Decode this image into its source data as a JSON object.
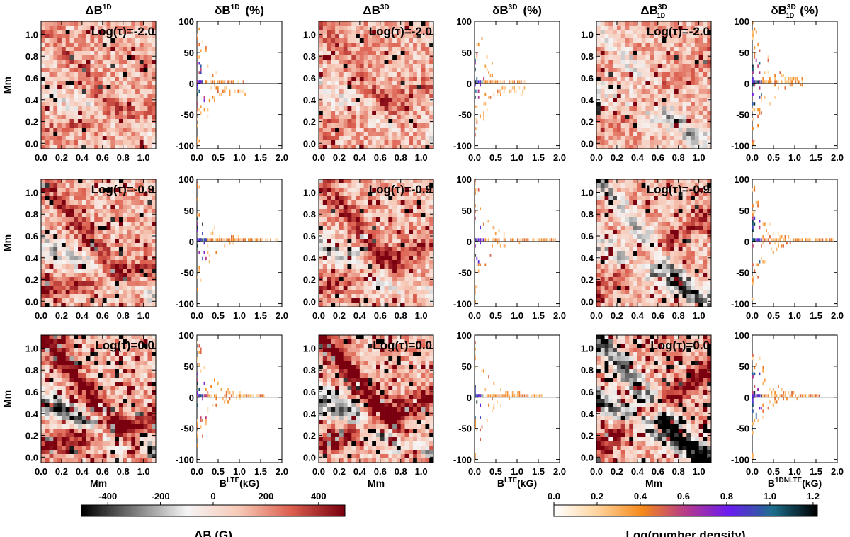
{
  "chart_data": {
    "type": "heatmap",
    "columns": [
      {
        "map_title": "ΔB",
        "map_sup": "1D",
        "map_sub": "",
        "hist_title": "δB",
        "hist_sup": "1D",
        "hist_sub": "",
        "hist_unit": "(%)",
        "hist_xlabel_main": "B",
        "hist_xlabel_sup": "LTE",
        "hist_xlabel_unit": "(kG)"
      },
      {
        "map_title": "ΔB",
        "map_sup": "3D",
        "map_sub": "",
        "hist_title": "δB",
        "hist_sup": "3D",
        "hist_sub": "",
        "hist_unit": "(%)",
        "hist_xlabel_main": "B",
        "hist_xlabel_sup": "LTE",
        "hist_xlabel_unit": "(kG)"
      },
      {
        "map_title": "ΔB",
        "map_sup": "3D",
        "map_sub": "1D",
        "hist_title": "δB",
        "hist_sup": "3D",
        "hist_sub": "1D",
        "hist_unit": "(%)",
        "hist_xlabel_main": "B",
        "hist_xlabel_sup": "1DNLTE",
        "hist_xlabel_unit": "(kG)"
      }
    ],
    "rows": [
      {
        "label": "Log(τ)=-2.0"
      },
      {
        "label": "Log(τ)=-0.9"
      },
      {
        "label": "Log(τ)=0.0"
      }
    ],
    "map_axes": {
      "xlabel": "Mm",
      "ylabel": "Mm",
      "xlim": [
        0.0,
        1.12
      ],
      "ylim": [
        -0.05,
        1.12
      ],
      "xticks": [
        "0.0",
        "0.2",
        "0.4",
        "0.6",
        "0.8",
        "1.0"
      ],
      "yticks": [
        "0.0",
        "0.2",
        "0.4",
        "0.6",
        "0.8",
        "1.0"
      ]
    },
    "hist_axes": {
      "xlim": [
        0.0,
        2.0
      ],
      "ylim": [
        -105,
        100
      ],
      "xticks": [
        "0.0",
        "0.5",
        "1.0",
        "1.5",
        "2.0"
      ],
      "yticks": [
        "-100",
        "-50",
        "0",
        "50",
        "100"
      ]
    },
    "colorbar_left": {
      "label": "ΔB (G)",
      "range": [
        -500,
        500
      ],
      "ticks": [
        "-400",
        "-200",
        "0",
        "200",
        "400"
      ]
    },
    "colorbar_right": {
      "label": "Log(number density)",
      "range": [
        0.0,
        1.22
      ],
      "ticks": [
        "0.0",
        "0.2",
        "0.4",
        "0.6",
        "0.8",
        "1.0",
        "1.2"
      ]
    },
    "map_colors": {
      "neg": "#000000",
      "mid": "#f5f5f5",
      "pos1": "#f7c8b6",
      "pos2": "#dc5e4e",
      "pos3": "#7a0010"
    },
    "density_colors": {
      "low": "#ffffff",
      "c1": "#ffd29a",
      "c2": "#f5891b",
      "c3": "#b63a8a",
      "c4": "#6a1bf0",
      "c5": "#1c6e8c",
      "high": "#000000"
    }
  }
}
